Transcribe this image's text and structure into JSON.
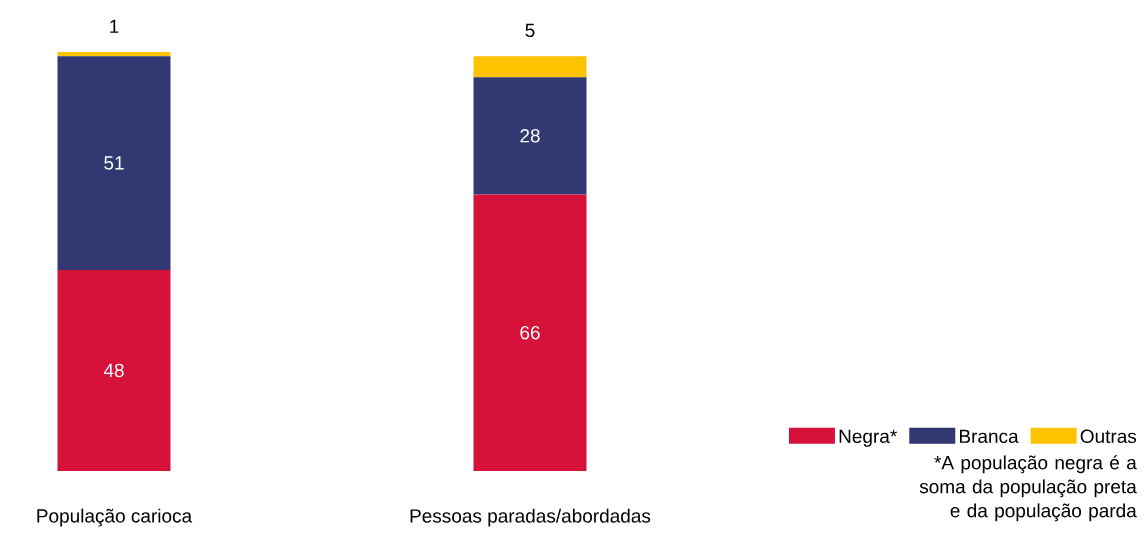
{
  "chart_data": {
    "type": "bar",
    "stacked": true,
    "data_labels": true,
    "legend": "bottom right",
    "categories": [
      "População carioca",
      "Pessoas paradas/abordadas"
    ],
    "series": [
      {
        "name": "Negra*",
        "color": "#d7123a",
        "values": [
          48,
          66
        ]
      },
      {
        "name": "Branca",
        "color": "#313872",
        "values": [
          51,
          28
        ]
      },
      {
        "name": "Outras",
        "color": "#fdc300",
        "values": [
          1,
          5
        ]
      }
    ],
    "annotations": [
      "*A população negra é a soma da população preta e da população parda"
    ]
  }
}
